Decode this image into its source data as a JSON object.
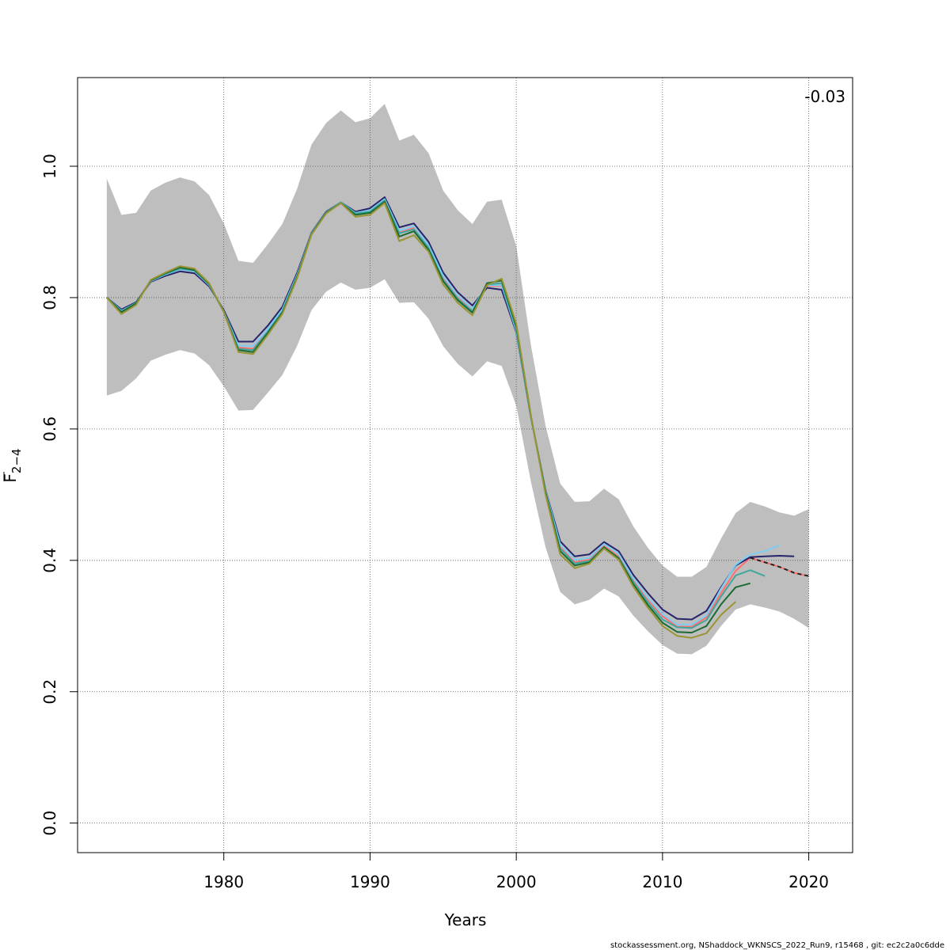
{
  "chart_data": {
    "type": "line",
    "xlabel": "Years",
    "ylabel_main": "F",
    "ylabel_sub": "2−4",
    "xlim": [
      1970,
      2023
    ],
    "ylim": [
      -0.045,
      1.135
    ],
    "x_ticks": [
      1980,
      1990,
      2000,
      2010,
      2020
    ],
    "x_tick_labels": [
      "1980",
      "1990",
      "2000",
      "2010",
      "2020"
    ],
    "y_ticks": [
      0.0,
      0.2,
      0.4,
      0.6,
      0.8,
      1.0
    ],
    "y_tick_labels": [
      "0.0",
      "0.2",
      "0.4",
      "0.6",
      "0.8",
      "1.0"
    ],
    "grid": true,
    "annotation": "-0.03",
    "footer": "stockassessment.org, NShaddock_WKNSCS_2022_Run9, r15468 , git: ec2c2a0c6dde",
    "band_color": "#bebebe",
    "band": {
      "x": [
        1972,
        1973,
        1974,
        1975,
        1976,
        1977,
        1978,
        1979,
        1980,
        1981,
        1982,
        1983,
        1984,
        1985,
        1986,
        1987,
        1988,
        1989,
        1990,
        1991,
        1992,
        1993,
        1994,
        1995,
        1996,
        1997,
        1998,
        1999,
        2000,
        2001,
        2002,
        2003,
        2004,
        2005,
        2006,
        2007,
        2008,
        2009,
        2010,
        2011,
        2012,
        2013,
        2014,
        2015,
        2016,
        2017,
        2018,
        2019,
        2020
      ],
      "lower": [
        0.651,
        0.658,
        0.677,
        0.704,
        0.713,
        0.72,
        0.715,
        0.697,
        0.665,
        0.628,
        0.629,
        0.655,
        0.682,
        0.726,
        0.781,
        0.809,
        0.823,
        0.812,
        0.815,
        0.828,
        0.792,
        0.793,
        0.768,
        0.726,
        0.699,
        0.68,
        0.703,
        0.696,
        0.635,
        0.52,
        0.42,
        0.352,
        0.333,
        0.34,
        0.357,
        0.345,
        0.316,
        0.292,
        0.271,
        0.258,
        0.257,
        0.27,
        0.3,
        0.325,
        0.333,
        0.328,
        0.322,
        0.311,
        0.297
      ],
      "upper": [
        0.981,
        0.926,
        0.929,
        0.963,
        0.975,
        0.983,
        0.977,
        0.956,
        0.913,
        0.856,
        0.853,
        0.881,
        0.912,
        0.965,
        1.033,
        1.066,
        1.085,
        1.067,
        1.073,
        1.095,
        1.039,
        1.048,
        1.02,
        0.963,
        0.933,
        0.912,
        0.946,
        0.949,
        0.878,
        0.728,
        0.605,
        0.517,
        0.489,
        0.49,
        0.509,
        0.493,
        0.452,
        0.419,
        0.392,
        0.375,
        0.375,
        0.39,
        0.433,
        0.472,
        0.489,
        0.482,
        0.473,
        0.468,
        0.478
      ]
    },
    "series": [
      {
        "color": "#ff6f6f",
        "line_style": "solid",
        "x": [
          1972,
          1973,
          1974,
          1975,
          1976,
          1977,
          1978,
          1979,
          1980,
          1981,
          1982,
          1983,
          1984,
          1985,
          1986,
          1987,
          1988,
          1989,
          1990,
          1991,
          1992,
          1993,
          1994,
          1995,
          1996,
          1997,
          1998,
          1999,
          2000,
          2001,
          2002,
          2003,
          2004,
          2005,
          2006,
          2007,
          2008,
          2009,
          2010,
          2011,
          2012,
          2013,
          2014,
          2015,
          2016,
          2017,
          2018,
          2019,
          2020
        ],
        "values": [
          0.8,
          0.78,
          0.793,
          0.826,
          0.836,
          0.845,
          0.841,
          0.82,
          0.779,
          0.724,
          0.722,
          0.749,
          0.78,
          0.832,
          0.897,
          0.93,
          0.944,
          0.928,
          0.932,
          0.948,
          0.899,
          0.906,
          0.878,
          0.83,
          0.8,
          0.78,
          0.818,
          0.818,
          0.75,
          0.618,
          0.504,
          0.42,
          0.397,
          0.401,
          0.422,
          0.406,
          0.37,
          0.34,
          0.315,
          0.299,
          0.299,
          0.313,
          0.35,
          0.384,
          0.404,
          0.397,
          0.39,
          0.381,
          0.376
        ]
      },
      {
        "color": "#27246c",
        "line_style": "solid",
        "x": [
          1972,
          1973,
          1974,
          1975,
          1976,
          1977,
          1978,
          1979,
          1980,
          1981,
          1982,
          1983,
          1984,
          1985,
          1986,
          1987,
          1988,
          1989,
          1990,
          1991,
          1992,
          1993,
          1994,
          1995,
          1996,
          1997,
          1998,
          1999,
          2000,
          2001,
          2002,
          2003,
          2004,
          2005,
          2006,
          2007,
          2008,
          2009,
          2010,
          2011,
          2012,
          2013,
          2014,
          2015,
          2016,
          2017,
          2018,
          2019
        ],
        "values": [
          0.8,
          0.782,
          0.793,
          0.824,
          0.833,
          0.84,
          0.837,
          0.817,
          0.781,
          0.733,
          0.733,
          0.757,
          0.786,
          0.837,
          0.899,
          0.931,
          0.945,
          0.931,
          0.936,
          0.953,
          0.907,
          0.913,
          0.885,
          0.838,
          0.808,
          0.788,
          0.815,
          0.812,
          0.747,
          0.618,
          0.507,
          0.429,
          0.406,
          0.409,
          0.428,
          0.414,
          0.378,
          0.35,
          0.325,
          0.311,
          0.31,
          0.323,
          0.359,
          0.392,
          0.405,
          0.406,
          0.407,
          0.406
        ]
      },
      {
        "color": "#7ccdf2",
        "line_style": "solid",
        "x": [
          1972,
          1973,
          1974,
          1975,
          1976,
          1977,
          1978,
          1979,
          1980,
          1981,
          1982,
          1983,
          1984,
          1985,
          1986,
          1987,
          1988,
          1989,
          1990,
          1991,
          1992,
          1993,
          1994,
          1995,
          1996,
          1997,
          1998,
          1999,
          2000,
          2001,
          2002,
          2003,
          2004,
          2005,
          2006,
          2007,
          2008,
          2009,
          2010,
          2011,
          2012,
          2013,
          2014,
          2015,
          2016,
          2017,
          2018
        ],
        "values": [
          0.8,
          0.78,
          0.792,
          0.825,
          0.835,
          0.843,
          0.84,
          0.819,
          0.779,
          0.727,
          0.726,
          0.752,
          0.782,
          0.834,
          0.898,
          0.93,
          0.945,
          0.929,
          0.933,
          0.95,
          0.902,
          0.909,
          0.88,
          0.833,
          0.803,
          0.783,
          0.819,
          0.819,
          0.749,
          0.618,
          0.506,
          0.424,
          0.401,
          0.404,
          0.425,
          0.41,
          0.373,
          0.343,
          0.318,
          0.302,
          0.302,
          0.316,
          0.357,
          0.393,
          0.409,
          0.414,
          0.423
        ]
      },
      {
        "color": "#3fa79c",
        "line_style": "solid",
        "x": [
          1972,
          1973,
          1974,
          1975,
          1976,
          1977,
          1978,
          1979,
          1980,
          1981,
          1982,
          1983,
          1984,
          1985,
          1986,
          1987,
          1988,
          1989,
          1990,
          1991,
          1992,
          1993,
          1994,
          1995,
          1996,
          1997,
          1998,
          1999,
          2000,
          2001,
          2002,
          2003,
          2004,
          2005,
          2006,
          2007,
          2008,
          2009,
          2010,
          2011,
          2012,
          2013,
          2014,
          2015,
          2016,
          2017
        ],
        "values": [
          0.8,
          0.779,
          0.792,
          0.826,
          0.836,
          0.844,
          0.841,
          0.82,
          0.779,
          0.722,
          0.72,
          0.748,
          0.779,
          0.832,
          0.897,
          0.93,
          0.945,
          0.928,
          0.931,
          0.948,
          0.898,
          0.904,
          0.876,
          0.827,
          0.798,
          0.779,
          0.82,
          0.822,
          0.752,
          0.619,
          0.504,
          0.418,
          0.395,
          0.399,
          0.42,
          0.404,
          0.367,
          0.336,
          0.31,
          0.298,
          0.297,
          0.309,
          0.345,
          0.377,
          0.385,
          0.376
        ]
      },
      {
        "color": "#1b6b34",
        "line_style": "solid",
        "x": [
          1972,
          1973,
          1974,
          1975,
          1976,
          1977,
          1978,
          1979,
          1980,
          1981,
          1982,
          1983,
          1984,
          1985,
          1986,
          1987,
          1988,
          1989,
          1990,
          1991,
          1992,
          1993,
          1994,
          1995,
          1996,
          1997,
          1998,
          1999,
          2000,
          2001,
          2002,
          2003,
          2004,
          2005,
          2006,
          2007,
          2008,
          2009,
          2010,
          2011,
          2012,
          2013,
          2014,
          2015,
          2016
        ],
        "values": [
          0.8,
          0.778,
          0.791,
          0.826,
          0.837,
          0.846,
          0.842,
          0.821,
          0.778,
          0.72,
          0.717,
          0.746,
          0.777,
          0.831,
          0.897,
          0.929,
          0.944,
          0.926,
          0.929,
          0.946,
          0.893,
          0.901,
          0.873,
          0.825,
          0.796,
          0.777,
          0.822,
          0.826,
          0.756,
          0.62,
          0.503,
          0.414,
          0.392,
          0.397,
          0.42,
          0.403,
          0.364,
          0.332,
          0.305,
          0.291,
          0.29,
          0.3,
          0.333,
          0.359,
          0.365
        ]
      },
      {
        "color": "#9a9433",
        "line_style": "solid",
        "x": [
          1972,
          1973,
          1974,
          1975,
          1976,
          1977,
          1978,
          1979,
          1980,
          1981,
          1982,
          1983,
          1984,
          1985,
          1986,
          1987,
          1988,
          1989,
          1990,
          1991,
          1992,
          1993,
          1994,
          1995,
          1996,
          1997,
          1998,
          1999,
          2000,
          2001,
          2002,
          2003,
          2004,
          2005,
          2006,
          2007,
          2008,
          2009,
          2010,
          2011,
          2012,
          2013,
          2014,
          2015
        ],
        "values": [
          0.8,
          0.775,
          0.789,
          0.827,
          0.838,
          0.848,
          0.844,
          0.822,
          0.778,
          0.717,
          0.714,
          0.743,
          0.775,
          0.829,
          0.896,
          0.928,
          0.944,
          0.923,
          0.926,
          0.944,
          0.886,
          0.895,
          0.87,
          0.82,
          0.792,
          0.773,
          0.819,
          0.829,
          0.76,
          0.621,
          0.5,
          0.409,
          0.388,
          0.395,
          0.418,
          0.401,
          0.36,
          0.328,
          0.3,
          0.285,
          0.282,
          0.289,
          0.317,
          0.337
        ]
      },
      {
        "color": "#222222",
        "line_style": "dashed",
        "x": [
          2016,
          2017,
          2018,
          2019,
          2020
        ],
        "values": [
          0.404,
          0.397,
          0.39,
          0.381,
          0.376
        ]
      }
    ]
  }
}
